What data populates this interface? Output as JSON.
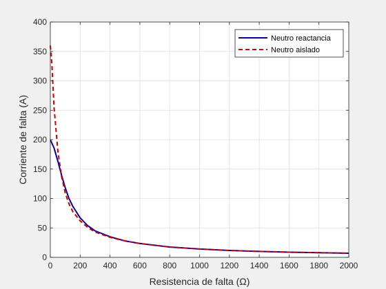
{
  "chart_data": {
    "type": "line",
    "title": "",
    "xlabel": "Resistencia de falta (Ω)",
    "ylabel": "Corriente de falta (A)",
    "xlim": [
      0,
      2000
    ],
    "ylim": [
      0,
      400
    ],
    "xticks": [
      0,
      200,
      400,
      600,
      800,
      1000,
      1200,
      1400,
      1600,
      1800,
      2000
    ],
    "yticks": [
      0,
      50,
      100,
      150,
      200,
      250,
      300,
      350,
      400
    ],
    "grid": true,
    "legend_position": "top-right",
    "series": [
      {
        "name": "Neutro reactancia",
        "color": "#0000a0",
        "style": "solid",
        "x": [
          0,
          25,
          50,
          75,
          100,
          125,
          150,
          200,
          250,
          300,
          400,
          500,
          600,
          800,
          1000,
          1200,
          1400,
          1600,
          1800,
          2000
        ],
        "y": [
          200,
          186,
          164,
          140,
          118,
          100,
          87,
          67,
          54,
          45,
          35,
          28,
          23.5,
          17.6,
          14.1,
          11.7,
          10.1,
          8.8,
          7.8,
          7
        ]
      },
      {
        "name": "Neutro aislado",
        "color": "#cc0000",
        "style": "dashed",
        "x": [
          0,
          10,
          25,
          50,
          75,
          100,
          125,
          150,
          200,
          250,
          300,
          400,
          500,
          600,
          800,
          1000,
          1200,
          1400,
          1600,
          1800,
          2000
        ],
        "y": [
          360,
          330,
          255,
          182,
          138,
          109,
          91,
          78,
          62,
          51,
          43,
          34,
          28,
          23.5,
          17.6,
          14.1,
          11.7,
          10.1,
          8.8,
          7.8,
          7
        ]
      }
    ]
  }
}
